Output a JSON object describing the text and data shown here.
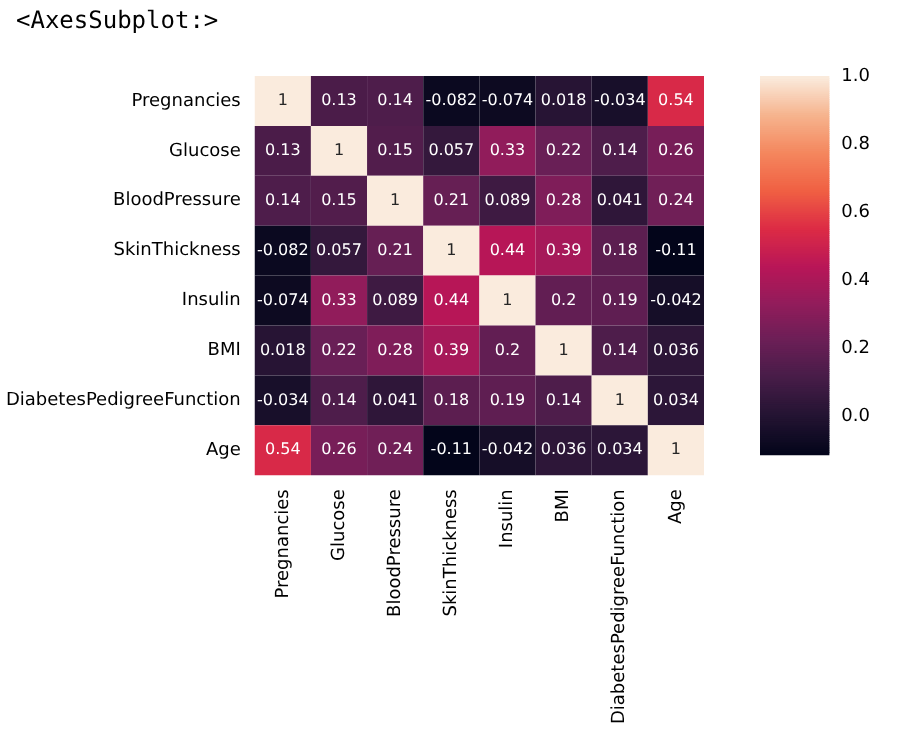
{
  "chart_data": {
    "type": "heatmap",
    "annotations": [
      "<AxesSubplot:>"
    ],
    "categories": [
      "Pregnancies",
      "Glucose",
      "BloodPressure",
      "SkinThickness",
      "Insulin",
      "BMI",
      "DiabetesPedigreeFunction",
      "Age"
    ],
    "y_categories": [
      "Pregnancies",
      "Glucose",
      "BloodPressure",
      "SkinThickness",
      "Insulin",
      "BMI",
      "DiabetesPedigreeFunction",
      "Age"
    ],
    "cells": [
      [
        1,
        0.13,
        0.14,
        -0.082,
        -0.074,
        0.018,
        -0.034,
        0.54
      ],
      [
        0.13,
        1,
        0.15,
        0.057,
        0.33,
        0.22,
        0.14,
        0.26
      ],
      [
        0.14,
        0.15,
        1,
        0.21,
        0.089,
        0.28,
        0.041,
        0.24
      ],
      [
        -0.082,
        0.057,
        0.21,
        1,
        0.44,
        0.39,
        0.18,
        -0.11
      ],
      [
        -0.074,
        0.33,
        0.089,
        0.44,
        1,
        0.2,
        0.19,
        -0.042
      ],
      [
        0.018,
        0.22,
        0.28,
        0.39,
        0.2,
        1,
        0.14,
        0.036
      ],
      [
        -0.034,
        0.14,
        0.041,
        0.18,
        0.19,
        0.14,
        1,
        0.034
      ],
      [
        0.54,
        0.26,
        0.24,
        -0.11,
        -0.042,
        0.036,
        0.034,
        1
      ]
    ],
    "data_labels": true,
    "clim": [
      -0.11,
      1.0
    ],
    "cticks": [
      {
        "value": 0,
        "label": "0.0"
      },
      {
        "value": 0.2,
        "label": "0.2"
      },
      {
        "value": 0.4,
        "label": "0.4"
      },
      {
        "value": 0.6,
        "label": "0.6"
      },
      {
        "value": 0.8,
        "label": "0.8"
      },
      {
        "value": 1,
        "label": "1.0"
      }
    ]
  }
}
